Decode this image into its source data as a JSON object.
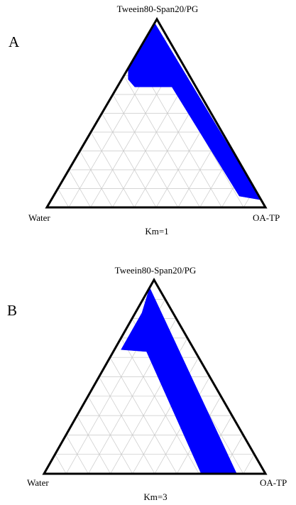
{
  "colors": {
    "region_fill": "#0000ff",
    "outline": "#000000",
    "grid": "#c8c8c8",
    "background": "#ffffff"
  },
  "diagrams": [
    {
      "panel_label": "A",
      "vertices": {
        "top": "Tweein80-Span20/PG",
        "left": "Water",
        "right": "OA-TP"
      },
      "km_label": "Km=1",
      "grid_divisions": 10,
      "region_fractions": [
        [
          0.0,
          0.98
        ],
        [
          0.0,
          0.88
        ],
        [
          0.0,
          0.74
        ],
        [
          0.03,
          0.68
        ],
        [
          0.08,
          0.64
        ],
        [
          0.25,
          0.64
        ],
        [
          0.85,
          0.06
        ],
        [
          0.96,
          0.04
        ]
      ]
    },
    {
      "panel_label": "B",
      "vertices": {
        "top": "Tweein80-Span20/PG",
        "left": "Water",
        "right": "OA-TP"
      },
      "km_label": "Km=3",
      "grid_divisions": 10,
      "region_fractions": [
        [
          0.0,
          0.96
        ],
        [
          0.03,
          0.83
        ],
        [
          0.03,
          0.64
        ],
        [
          0.15,
          0.63
        ],
        [
          0.71,
          0.0
        ],
        [
          0.87,
          0.0
        ]
      ]
    }
  ]
}
